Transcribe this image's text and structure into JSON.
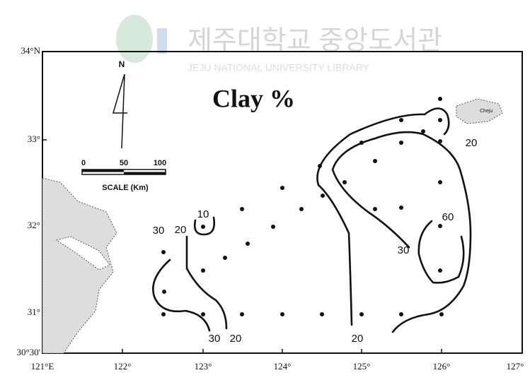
{
  "map": {
    "title": "Clay %",
    "north": "N",
    "watermark": {
      "korean": "제주대학교 중앙도서관",
      "english": "JEJU NATIONAL UNIVERSITY LIBRARY"
    },
    "lat_labels": [
      "34°N",
      "33°",
      "32°",
      "31°",
      "30°30'"
    ],
    "lon_labels": [
      "121°E",
      "122°",
      "123°",
      "124°",
      "125°",
      "126°",
      "127°"
    ],
    "scale": {
      "ticks": [
        "0",
        "50",
        "100"
      ],
      "caption": "SCALE (Km)"
    },
    "place": "Cheju",
    "contour_labels": [
      "10",
      "30",
      "20",
      "30",
      "20",
      "20",
      "30",
      "60",
      "20"
    ]
  }
}
